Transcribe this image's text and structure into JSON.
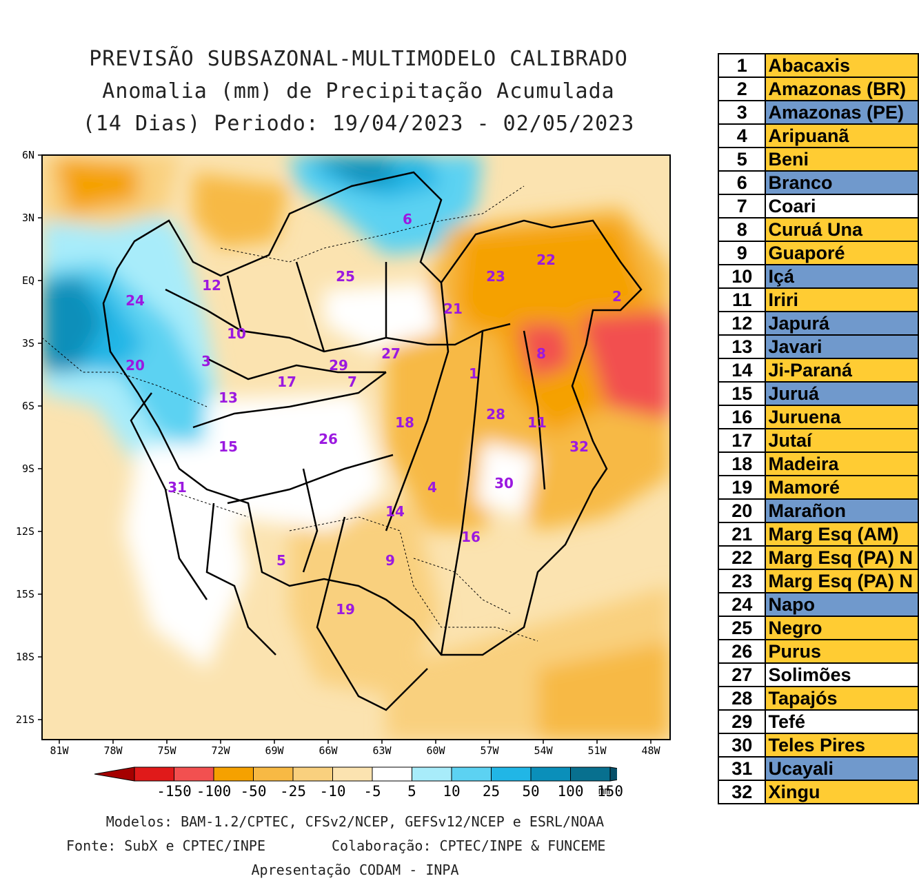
{
  "title": {
    "line1": "PREVISÃO SUBSAZONAL-MULTIMODELO CALIBRADO",
    "line2": "Anomalia (mm) de Precipitação Acumulada",
    "line3": "(14 Dias) Periodo: 19/04/2023 - 02/05/2023"
  },
  "map": {
    "lat_labels": [
      "6N",
      "3N",
      "EQ",
      "3S",
      "6S",
      "9S",
      "12S",
      "15S",
      "18S",
      "21S"
    ],
    "lon_labels": [
      "81W",
      "78W",
      "75W",
      "72W",
      "69W",
      "66W",
      "63W",
      "60W",
      "57W",
      "54W",
      "51W",
      "48W"
    ],
    "basin_markers": [
      "1",
      "2",
      "3",
      "4",
      "5",
      "6",
      "7",
      "8",
      "9",
      "10",
      "11",
      "12",
      "13",
      "14",
      "15",
      "16",
      "17",
      "18",
      "19",
      "20",
      "21",
      "22",
      "23",
      "24",
      "25",
      "26",
      "27",
      "28",
      "29",
      "30",
      "31",
      "32"
    ],
    "label_color": "#9b19e0"
  },
  "colorbar": {
    "labels": [
      "-150",
      "-100",
      "-50",
      "-25",
      "-10",
      "-5",
      "5",
      "10",
      "25",
      "50",
      "100",
      "150"
    ],
    "colors": [
      "#a50000",
      "#e01a1a",
      "#f25050",
      "#f5a100",
      "#f7b944",
      "#f9d07e",
      "#fbe3b0",
      "#ffffff",
      "#a8ecfa",
      "#5cd2f2",
      "#21b6e6",
      "#0a8fba",
      "#08708f",
      "#06506a"
    ],
    "unit": "mm"
  },
  "credits": {
    "models": "Modelos: BAM-1.2/CPTEC, CFSv2/NCEP, GEFSv12/NCEP e ESRL/NOAA",
    "source": "Fonte: SubX e CPTEC/INPE",
    "collab": "Colaboração: CPTEC/INPE & FUNCEME",
    "presentation": "Apresentação CODAM - INPA"
  },
  "basins": [
    {
      "n": "1",
      "name": "Abacaxis",
      "color": "#ffcc33"
    },
    {
      "n": "2",
      "name": "Amazonas (BR)",
      "color": "#ffcc33"
    },
    {
      "n": "3",
      "name": "Amazonas (PE)",
      "color": "#7099cc"
    },
    {
      "n": "4",
      "name": "Aripuanã",
      "color": "#ffcc33"
    },
    {
      "n": "5",
      "name": "Beni",
      "color": "#ffcc33"
    },
    {
      "n": "6",
      "name": "Branco",
      "color": "#7099cc"
    },
    {
      "n": "7",
      "name": "Coari",
      "color": "#ffffff"
    },
    {
      "n": "8",
      "name": "Curuá Una",
      "color": "#ffcc33"
    },
    {
      "n": "9",
      "name": "Guaporé",
      "color": "#ffcc33"
    },
    {
      "n": "10",
      "name": "Içá",
      "color": "#7099cc"
    },
    {
      "n": "11",
      "name": "Iriri",
      "color": "#ffcc33"
    },
    {
      "n": "12",
      "name": "Japurá",
      "color": "#7099cc"
    },
    {
      "n": "13",
      "name": "Javari",
      "color": "#7099cc"
    },
    {
      "n": "14",
      "name": "Ji-Paraná",
      "color": "#ffcc33"
    },
    {
      "n": "15",
      "name": "Juruá",
      "color": "#7099cc"
    },
    {
      "n": "16",
      "name": "Juruena",
      "color": "#ffcc33"
    },
    {
      "n": "17",
      "name": "Jutaí",
      "color": "#ffcc33"
    },
    {
      "n": "18",
      "name": "Madeira",
      "color": "#ffcc33"
    },
    {
      "n": "19",
      "name": "Mamoré",
      "color": "#ffcc33"
    },
    {
      "n": "20",
      "name": "Marañon",
      "color": "#7099cc"
    },
    {
      "n": "21",
      "name": "Marg Esq (AM)",
      "color": "#ffcc33"
    },
    {
      "n": "22",
      "name": "Marg Esq (PA) N",
      "color": "#ffcc33"
    },
    {
      "n": "23",
      "name": "Marg Esq (PA) N",
      "color": "#ffcc33"
    },
    {
      "n": "24",
      "name": "Napo",
      "color": "#7099cc"
    },
    {
      "n": "25",
      "name": "Negro",
      "color": "#ffcc33"
    },
    {
      "n": "26",
      "name": "Purus",
      "color": "#ffcc33"
    },
    {
      "n": "27",
      "name": "Solimões",
      "color": "#ffffff"
    },
    {
      "n": "28",
      "name": "Tapajós",
      "color": "#ffcc33"
    },
    {
      "n": "29",
      "name": "Tefé",
      "color": "#ffffff"
    },
    {
      "n": "30",
      "name": "Teles Pires",
      "color": "#ffcc33"
    },
    {
      "n": "31",
      "name": "Ucayali",
      "color": "#7099cc"
    },
    {
      "n": "32",
      "name": "Xingu",
      "color": "#ffcc33"
    }
  ]
}
